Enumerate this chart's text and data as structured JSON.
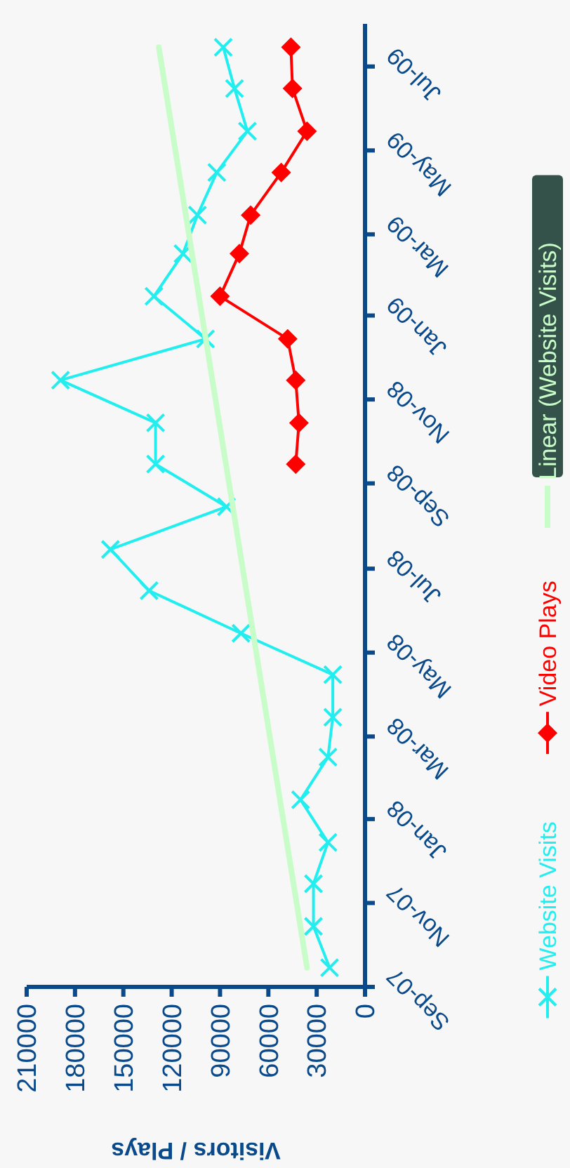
{
  "chart_data": {
    "type": "line",
    "orientation": "horizontal",
    "xlabel": "Visitors / Plays",
    "ylim": [
      "2007-09-01",
      "2009-08-01"
    ],
    "yticks": [
      {
        "value": "2007-09-01",
        "label": "Sep-07"
      },
      {
        "value": "2007-11-01",
        "label": "Nov-07"
      },
      {
        "value": "2008-01-01",
        "label": "Jan-08"
      },
      {
        "value": "2008-03-01",
        "label": "Mar-08"
      },
      {
        "value": "2008-05-01",
        "label": "May-08"
      },
      {
        "value": "2008-07-01",
        "label": "Jul-08"
      },
      {
        "value": "2008-09-01",
        "label": "Sep-08"
      },
      {
        "value": "2008-11-01",
        "label": "Nov-08"
      },
      {
        "value": "2009-01-01",
        "label": "Jan-09"
      },
      {
        "value": "2009-03-01",
        "label": "Mar-09"
      },
      {
        "value": "2009-05-01",
        "label": "May-09"
      },
      {
        "value": "2009-07-01",
        "label": "Jul-09"
      }
    ],
    "xlim": [
      210000,
      0
    ],
    "xticks": [
      210000,
      180000,
      150000,
      120000,
      90000,
      60000,
      30000,
      0
    ],
    "grid": false,
    "legend": "right",
    "line_style": "solid",
    "series": [
      {
        "name": "Website Visits",
        "color": "#22eef0",
        "marker": "cross",
        "x": [
          "2007-09-15",
          "2007-10-15",
          "2007-11-15",
          "2007-12-15",
          "2008-01-15",
          "2008-02-15",
          "2008-03-15",
          "2008-04-15",
          "2008-05-15",
          "2008-06-15",
          "2008-07-15",
          "2008-08-15",
          "2008-09-15",
          "2008-10-15",
          "2008-11-15",
          "2008-12-15",
          "2009-01-15",
          "2009-02-15",
          "2009-03-15",
          "2009-04-15",
          "2009-05-15",
          "2009-06-15",
          "2009-07-15"
        ],
        "values": [
          22000,
          32000,
          32000,
          23000,
          40000,
          23000,
          20000,
          20000,
          77000,
          134000,
          158000,
          86000,
          130000,
          130000,
          189000,
          99000,
          131000,
          113000,
          104000,
          92000,
          73000,
          81000,
          88000
        ]
      },
      {
        "name": "Video Plays",
        "color": "#ff0000",
        "marker": "diamond",
        "x": [
          "2008-09-15",
          "2008-10-15",
          "2008-11-15",
          "2008-12-15",
          "2009-01-15",
          "2009-02-15",
          "2009-03-15",
          "2009-04-15",
          "2009-05-15",
          "2009-06-15",
          "2009-07-15"
        ],
        "values": [
          43000,
          41000,
          43000,
          48000,
          90000,
          78000,
          71000,
          52000,
          36000,
          45000,
          46000
        ]
      },
      {
        "name": "Linear (Website Visits)",
        "color": "#c8fcc8",
        "marker": "none",
        "x": [
          "2007-09-15",
          "2009-07-15"
        ],
        "values": [
          36000,
          128000
        ]
      }
    ]
  }
}
